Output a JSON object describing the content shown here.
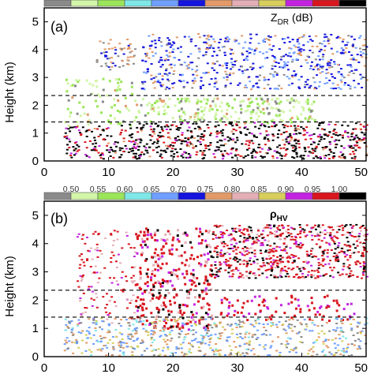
{
  "chart_data": [
    {
      "type": "heatmap",
      "panel_label": "(a)",
      "variable_label": "Z",
      "variable_subscript": "DR",
      "variable_unit": "(dB)",
      "ylabel": "Height (km)",
      "xlim": [
        0,
        50
      ],
      "ylim": [
        0,
        5.5
      ],
      "x_ticks": [
        "0",
        "10",
        "20",
        "30",
        "40",
        "50"
      ],
      "y_ticks": [
        "0",
        "1",
        "2",
        "3",
        "4",
        "5"
      ],
      "dashed_lines_km": [
        2.35,
        1.4
      ],
      "colorbar_colors": [
        "#8a8a8a",
        "#d2f5a8",
        "#9be55a",
        "#7fe7e7",
        "#6f9fff",
        "#1515dd",
        "#e39a68",
        "#e4aeb6",
        "#d7ce5c",
        "#c323e0",
        "#d8161e",
        "#000000"
      ],
      "grid": false
    },
    {
      "type": "heatmap",
      "panel_label": "(b)",
      "variable_label": "ρ",
      "variable_subscript": "HV",
      "ylabel": "Height (km)",
      "xlim": [
        0,
        50
      ],
      "ylim": [
        0,
        5.5
      ],
      "x_ticks": [
        "0",
        "10",
        "20",
        "30",
        "40",
        "50"
      ],
      "y_ticks": [
        "0",
        "1",
        "2",
        "3",
        "4",
        "5"
      ],
      "dashed_lines_km": [
        2.35,
        1.4
      ],
      "colorbar_labels": [
        "0.50",
        "0.55",
        "0.60",
        "0.65",
        "0.70",
        "0.75",
        "0.80",
        "0.85",
        "0.90",
        "0.95",
        "1.00"
      ],
      "colorbar_colors": [
        "#8a8a8a",
        "#d2f5a8",
        "#9be55a",
        "#7fe7e7",
        "#6f9fff",
        "#1515dd",
        "#e39a68",
        "#e4aeb6",
        "#d7ce5c",
        "#c323e0",
        "#d8161e",
        "#000000"
      ],
      "grid": false
    }
  ]
}
